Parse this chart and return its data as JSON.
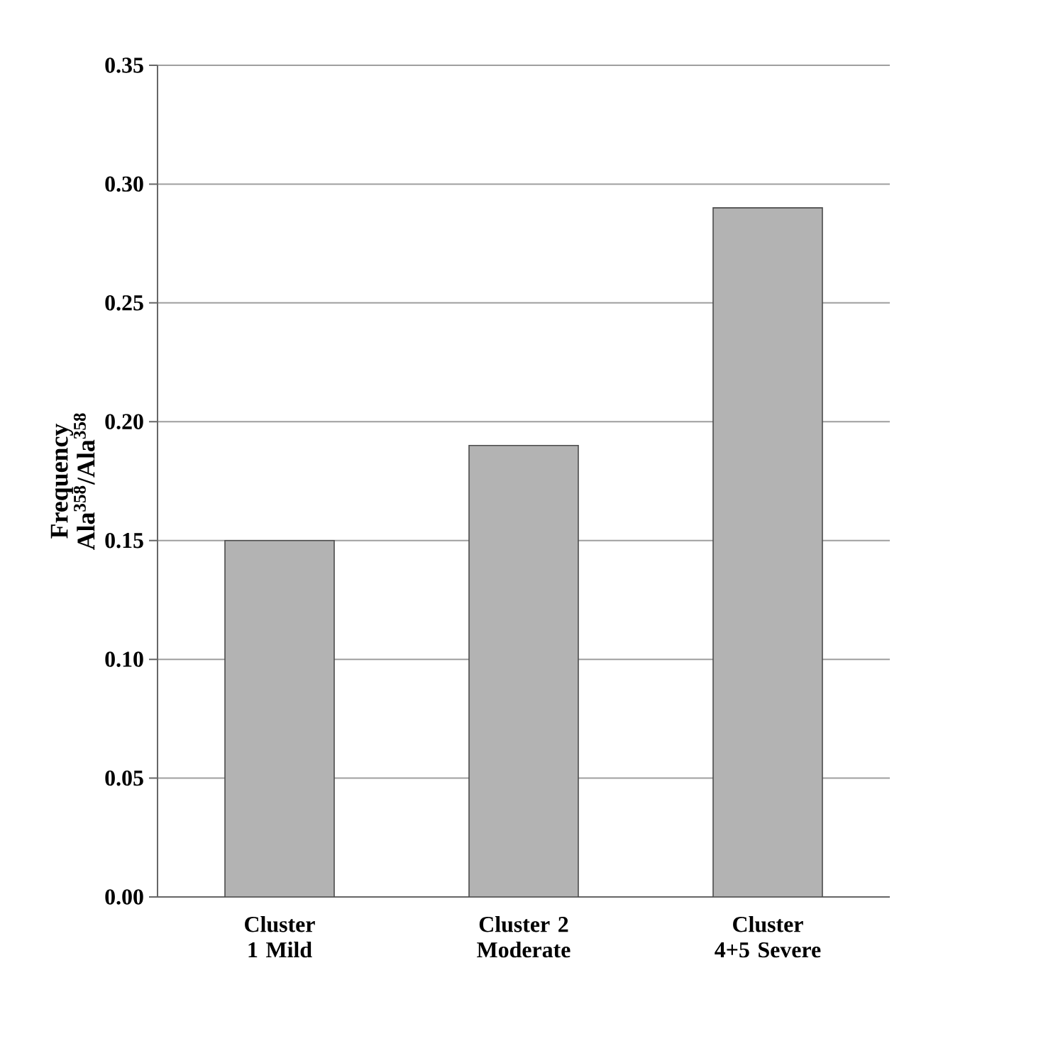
{
  "chart_data": {
    "type": "bar",
    "ylabel": "Frequency Ala$^{358}$/Ala$^{358}$",
    "categories": [
      "Cluster 1 Mild",
      "Cluster 2 Moderate",
      "Cluster 4+5 Severe"
    ],
    "values": [
      0.15,
      0.19,
      0.29
    ],
    "color": "#b3b3b3",
    "ylim": [
      0,
      0.35
    ],
    "yticks": [
      {
        "value": 0,
        "label": "0.00"
      },
      {
        "value": 0.05,
        "label": "0.05"
      },
      {
        "value": 0.1,
        "label": "0.10"
      },
      {
        "value": 0.15,
        "label": "0.15"
      },
      {
        "value": 0.2,
        "label": "0.20"
      },
      {
        "value": 0.25,
        "label": "0.25"
      },
      {
        "value": 0.3,
        "label": "0.30"
      },
      {
        "value": 0.35,
        "label": "0.35"
      }
    ],
    "grid": "y"
  }
}
